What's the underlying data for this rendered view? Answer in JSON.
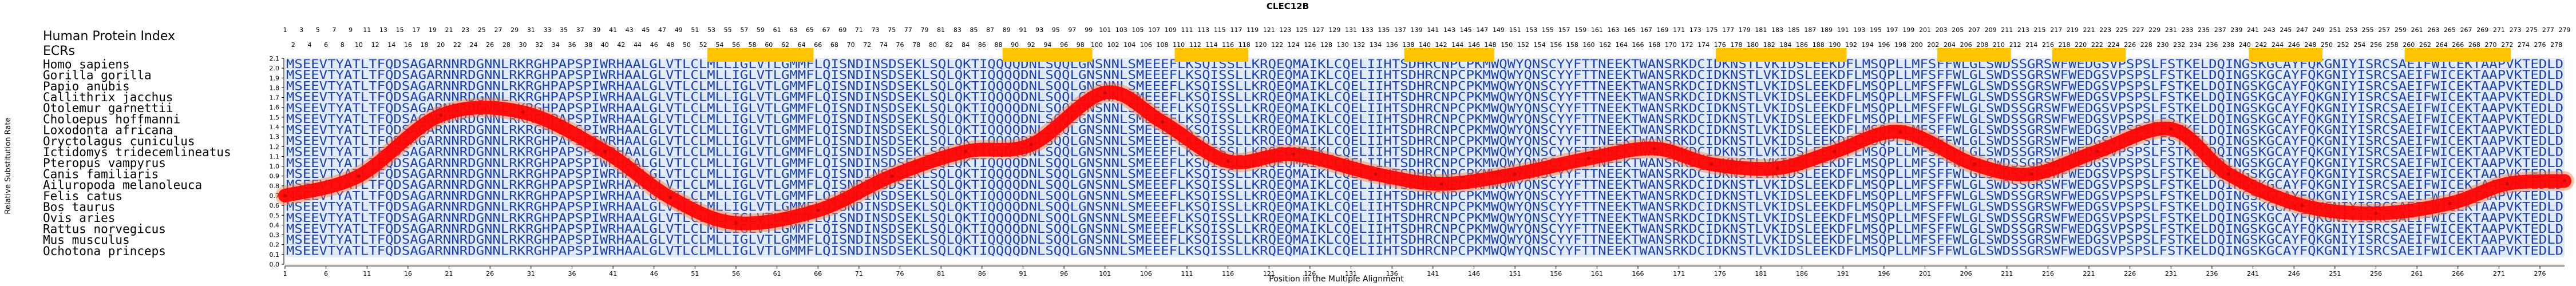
{
  "chart_data": {
    "type": "line",
    "title": "CLEC12B",
    "index_label": "Human Protein Index",
    "ecr_label": "ECRs",
    "xlabel": "Position in the Multiple Alignment",
    "ylabel": "Relative Substitution Rate",
    "xlim": [
      1,
      279
    ],
    "ylim": [
      0.0,
      2.1
    ],
    "yticks": [
      0.0,
      0.1,
      0.2,
      0.3,
      0.4,
      0.5,
      0.6,
      0.7,
      0.8,
      0.9,
      1.0,
      1.1,
      1.2,
      1.3,
      1.4,
      1.5,
      1.6,
      1.7,
      1.8,
      1.9,
      2.0,
      2.1
    ],
    "xticks": [
      1,
      6,
      11,
      16,
      21,
      26,
      31,
      36,
      41,
      46,
      51,
      56,
      61,
      66,
      71,
      76,
      81,
      86,
      91,
      96,
      101,
      106,
      111,
      116,
      121,
      126,
      131,
      136,
      141,
      146,
      151,
      156,
      161,
      166,
      171,
      176,
      181,
      186,
      191,
      196,
      201,
      206,
      211,
      216,
      221,
      226,
      231,
      236,
      241,
      246,
      251,
      256,
      261,
      266,
      271,
      276
    ],
    "species": [
      "Homo sapiens",
      "Gorilla gorilla",
      "Papio anubis",
      "Callithrix jacchus",
      "Otolemur garnettii",
      "Choloepus hoffmanni",
      "Loxodonta africana",
      "Oryctolagus cuniculus",
      "Ictidomys tridecemlineatus",
      "Pteropus vampyrus",
      "Canis familiaris",
      "Ailuropoda melanoleuca",
      "Felis catus",
      "Bos taurus",
      "Ovis aries",
      "Rattus norvegicus",
      "Mus musculus",
      "Ochotona princeps"
    ],
    "sequences": [
      "MSEEVTYATLTFQDSAGARNNRDGNNLRKRGHPAPSPIWRHAALGLVTLCLMLLIGLVTLGMMFLQISNDINSDSEKLSQLQKTIQQQQDNLSQQLGNSNNLSMEEEFLKSQISSLLKRQEQMAIKLCQELIIHTSDHRCNPCPKMWQWYQNSCYYFTTNEEKTWANSRKDCIDKNSTLVKIDSLEEKDFLMSQPLLMFSFFWLGLSWDSSGRSWFWEDGSVPSPSLFSTKELDQINGSKGCAYFQKGNIYISRCSAEIFWICEKTAAPVKTEDLD",
      "MSEEVTYATLTFQDSAGARNNRDGNNLRKRGHPAPSPIWRHAALGLVTLCLMLLIGLVTLGMMFLQISNDINSDSEKLSQLQKTIQQQQDNLSQQLGNSNNLSMEEEFLKSQISSLLKRQEQMAIKLCQELIIHTSDHRCNPCPKMWQWYQNSCYYFTTNEEKTWANSRKDCIDKNSTLVKIDSLEEKDFLMSQPLLMFSFFWLGLSWDSSGRSWFWEDGSVPSPSLFSTKELDQINGSKGCAYFQKGNIYISRCSAEIFWICEKTAAPVKTEDLD",
      "MSEEVTYATLTFQDSAGARNNRDGNNLRKRGHPAPSPIWRHAALGLVTLCLMLLIGLVTLGMMFLQISNDINSDSEKLSQLQKTIQQQQDNLSQQLGNSNNLSMEEEFLKSQISSLLKRQEQMAIKLCQELIIHTSDHRCNPCPKMWQWYQNSCYYFTTNEEKTWANSRKDCIDKNSTLVKIDSLEEKDFLMSQPLLMFSFFWLGLSWDSSGRSWFWEDGSVPSPSLFSTKELDQINGSKGCAYFQKGNIYISRCSAEIFWICEKTAAPVKTEDLD",
      "MSEEVTYATLTFQDSAGARNNRDGNNLRKRGHPAPSPIWRHAALGLVTLCLMLLIGLVTLGMMFLQISNDINSDSEKLSQLQKTIQQQQDNLSQQLGNSNNLSMEEEFLKSQISSLLKRQEQMAIKLCQELIIHTSDHRCNPCPKMWQWYQNSCYYFTTNEEKTWANSRKDCIDKNSTLVKIDSLEEKDFLMSQPLLMFSFFWLGLSWDSSGRSWFWEDGSVPSPSLFSTKELDQINGSKGCAYFQKGNIYISRCSAEIFWICEKTAAPVKTEDLD",
      "MSEEVTYATLTFQDSAGARNNRDGNNLRKRGHPAPSPIWRHAALGLVTLCLMLLIGLVTLGMMFLQISNDINSDSEKLSQLQKTIQQQQDNLSQQLGNSNNLSMEEEFLKSQISSLLKRQEQMAIKLCQELIIHTSDHRCNPCPKMWQWYQNSCYYFTTNEEKTWANSRKDCIDKNSTLVKIDSLEEKDFLMSQPLLMFSFFWLGLSWDSSGRSWFWEDGSVPSPSLFSTKELDQINGSKGCAYFQKGNIYISRCSAEIFWICEKTAAPVKTEDLD",
      "MSEEVTYATLTFQDSAGARNNRDGNNLRKRGHPAPSPIWRHAALGLVTLCLMLLIGLVTLGMMFLQISNDINSDSEKLSQLQKTIQQQQDNLSQQLGNSNNLSMEEEFLKSQISSLLKRQEQMAIKLCQELIIHTSDHRCNPCPKMWQWYQNSCYYFTTNEEKTWANSRKDCIDKNSTLVKIDSLEEKDFLMSQPLLMFSFFWLGLSWDSSGRSWFWEDGSVPSPSLFSTKELDQINGSKGCAYFQKGNIYISRCSAEIFWICEKTAAPVKTEDLD",
      "MSEEVTYATLTFQDSAGARNNRDGNNLRKRGHPAPSPIWRHAALGLVTLCLMLLIGLVTLGMMFLQISNDINSDSEKLSQLQKTIQQQQDNLSQQLGNSNNLSMEEEFLKSQISSLLKRQEQMAIKLCQELIIHTSDHRCNPCPKMWQWYQNSCYYFTTNEEKTWANSRKDCIDKNSTLVKIDSLEEKDFLMSQPLLMFSFFWLGLSWDSSGRSWFWEDGSVPSPSLFSTKELDQINGSKGCAYFQKGNIYISRCSAEIFWICEKTAAPVKTEDLD",
      "MSEEVTYATLTFQDSAGARNNRDGNNLRKRGHPAPSPIWRHAALGLVTLCLMLLIGLVTLGMMFLQISNDINSDSEKLSQLQKTIQQQQDNLSQQLGNSNNLSMEEEFLKSQISSLLKRQEQMAIKLCQELIIHTSDHRCNPCPKMWQWYQNSCYYFTTNEEKTWANSRKDCIDKNSTLVKIDSLEEKDFLMSQPLLMFSFFWLGLSWDSSGRSWFWEDGSVPSPSLFSTKELDQINGSKGCAYFQKGNIYISRCSAEIFWICEKTAAPVKTEDLD",
      "MSEEVTYATLTFQDSAGARNNRDGNNLRKRGHPAPSPIWRHAALGLVTLCLMLLIGLVTLGMMFLQISNDINSDSEKLSQLQKTIQQQQDNLSQQLGNSNNLSMEEEFLKSQISSLLKRQEQMAIKLCQELIIHTSDHRCNPCPKMWQWYQNSCYYFTTNEEKTWANSRKDCIDKNSTLVKIDSLEEKDFLMSQPLLMFSFFWLGLSWDSSGRSWFWEDGSVPSPSLFSTKELDQINGSKGCAYFQKGNIYISRCSAEIFWICEKTAAPVKTEDLD",
      "MSEEVTYATLTFQDSAGARNNRDGNNLRKRGHPAPSPIWRHAALGLVTLCLMLLIGLVTLGMMFLQISNDINSDSEKLSQLQKTIQQQQDNLSQQLGNSNNLSMEEEFLKSQISSLLKRQEQMAIKLCQELIIHTSDHRCNPCPKMWQWYQNSCYYFTTNEEKTWANSRKDCIDKNSTLVKIDSLEEKDFLMSQPLLMFSFFWLGLSWDSSGRSWFWEDGSVPSPSLFSTKELDQINGSKGCAYFQKGNIYISRCSAEIFWICEKTAAPVKTEDLD",
      "MSEEVTYATLTFQDSAGARNNRDGNNLRKRGHPAPSPIWRHAALGLVTLCLMLLIGLVTLGMMFLQISNDINSDSEKLSQLQKTIQQQQDNLSQQLGNSNNLSMEEEFLKSQISSLLKRQEQMAIKLCQELIIHTSDHRCNPCPKMWQWYQNSCYYFTTNEEKTWANSRKDCIDKNSTLVKIDSLEEKDFLMSQPLLMFSFFWLGLSWDSSGRSWFWEDGSVPSPSLFSTKELDQINGSKGCAYFQKGNIYISRCSAEIFWICEKTAAPVKTEDLD",
      "MSEEVTYATLTFQDSAGARNNRDGNNLRKRGHPAPSPIWRHAALGLVTLCLMLLIGLVTLGMMFLQISNDINSDSEKLSQLQKTIQQQQDNLSQQLGNSNNLSMEEEFLKSQISSLLKRQEQMAIKLCQELIIHTSDHRCNPCPKMWQWYQNSCYYFTTNEEKTWANSRKDCIDKNSTLVKIDSLEEKDFLMSQPLLMFSFFWLGLSWDSSGRSWFWEDGSVPSPSLFSTKELDQINGSKGCAYFQKGNIYISRCSAEIFWICEKTAAPVKTEDLD",
      "MSEEVTYATLTFQDSAGARNNRDGNNLRKRGHPAPSPIWRHAALGLVTLCLMLLIGLVTLGMMFLQISNDINSDSEKLSQLQKTIQQQQDNLSQQLGNSNNLSMEEEFLKSQISSLLKRQEQMAIKLCQELIIHTSDHRCNPCPKMWQWYQNSCYYFTTNEEKTWANSRKDCIDKNSTLVKIDSLEEKDFLMSQPLLMFSFFWLGLSWDSSGRSWFWEDGSVPSPSLFSTKELDQINGSKGCAYFQKGNIYISRCSAEIFWICEKTAAPVKTEDLD",
      "MSEEVTYATLTFQDSAGARNNRDGNNLRKRGHPAPSPIWRHAALGLVTLCLMLLIGLVTLGMMFLQISNDINSDSEKLSQLQKTIQQQQDNLSQQLGNSNNLSMEEEFLKSQISSLLKRQEQMAIKLCQELIIHTSDHRCNPCPKMWQWYQNSCYYFTTNEEKTWANSRKDCIDKNSTLVKIDSLEEKDFLMSQPLLMFSFFWLGLSWDSSGRSWFWEDGSVPSPSLFSTKELDQINGSKGCAYFQKGNIYISRCSAEIFWICEKTAAPVKTEDLD",
      "MSEEVTYATLTFQDSAGARNNRDGNNLRKRGHPAPSPIWRHAALGLVTLCLMLLIGLVTLGMMFLQISNDINSDSEKLSQLQKTIQQQQDNLSQQLGNSNNLSMEEEFLKSQISSLLKRQEQMAIKLCQELIIHTSDHRCNPCPKMWQWYQNSCYYFTTNEEKTWANSRKDCIDKNSTLVKIDSLEEKDFLMSQPLLMFSFFWLGLSWDSSGRSWFWEDGSVPSPSLFSTKELDQINGSKGCAYFQKGNIYISRCSAEIFWICEKTAAPVKTEDLD",
      "MSEEVTYATLTFQDSAGARNNRDGNNLRKRGHPAPSPIWRHAALGLVTLCLMLLIGLVTLGMMFLQISNDINSDSEKLSQLQKTIQQQQDNLSQQLGNSNNLSMEEEFLKSQISSLLKRQEQMAIKLCQELIIHTSDHRCNPCPKMWQWYQNSCYYFTTNEEKTWANSRKDCIDKNSTLVKIDSLEEKDFLMSQPLLMFSFFWLGLSWDSSGRSWFWEDGSVPSPSLFSTKELDQINGSKGCAYFQKGNIYISRCSAEIFWICEKTAAPVKTEDLD",
      "MSEEVTYATLTFQDSAGARNNRDGNNLRKRGHPAPSPIWRHAALGLVTLCLMLLIGLVTLGMMFLQISNDINSDSEKLSQLQKTIQQQQDNLSQQLGNSNNLSMEEEFLKSQISSLLKRQEQMAIKLCQELIIHTSDHRCNPCPKMWQWYQNSCYYFTTNEEKTWANSRKDCIDKNSTLVKIDSLEEKDFLMSQPLLMFSFFWLGLSWDSSGRSWFWEDGSVPSPSLFSTKELDQINGSKGCAYFQKGNIYISRCSAEIFWICEKTAAPVKTEDLD",
      "MSEEVTYATLTFQDSAGARNNRDGNNLRKRGHPAPSPIWRHAALGLVTLCLMLLIGLVTLGMMFLQISNDINSDSEKLSQLQKTIQQQQDNLSQQLGNSNNLSMEEEFLKSQISSLLKRQEQMAIKLCQELIIHTSDHRCNPCPKMWQWYQNSCYYFTTNEEKTWANSRKDCIDKNSTLVKIDSLEEKDFLMSQPLLMFSFFWLGLSWDSSGRSWFWEDGSVPSPSLFSTKELDQINGSKGCAYFQKGNIYISRCSAEIFWICEKTAAPVKTEDLD"
    ],
    "ecr_blocks": [
      [
        53,
        65
      ],
      [
        89,
        99
      ],
      [
        110,
        118
      ],
      [
        138,
        148
      ],
      [
        176,
        191
      ],
      [
        203,
        211
      ],
      [
        217,
        225
      ],
      [
        241,
        249
      ],
      [
        260,
        272
      ]
    ],
    "curve": {
      "x": [
        1,
        10,
        20,
        30,
        40,
        48,
        56,
        66,
        75,
        84,
        92,
        101,
        108,
        116,
        124,
        134,
        142,
        151,
        160,
        168,
        175,
        183,
        190,
        198,
        207,
        214,
        222,
        231,
        238,
        247,
        256,
        265,
        272,
        279
      ],
      "y": [
        0.7,
        0.9,
        1.52,
        1.55,
        1.15,
        0.68,
        0.42,
        0.55,
        0.9,
        1.15,
        1.22,
        1.75,
        1.45,
        1.05,
        1.12,
        0.92,
        0.82,
        0.92,
        1.08,
        1.18,
        1.02,
        0.98,
        1.15,
        1.35,
        1.02,
        0.92,
        1.15,
        1.38,
        0.92,
        0.6,
        0.52,
        0.62,
        0.82,
        0.85
      ]
    },
    "colors": {
      "curve": "#ff0000",
      "curve_glow": "#ff7b3a",
      "ecr": "#ffc400",
      "seq_conserved": "#1c3fb0",
      "seq_variable": "#35a6d8",
      "seq_bg": "#c8ddf2",
      "grid": "#d7d7d7"
    }
  }
}
